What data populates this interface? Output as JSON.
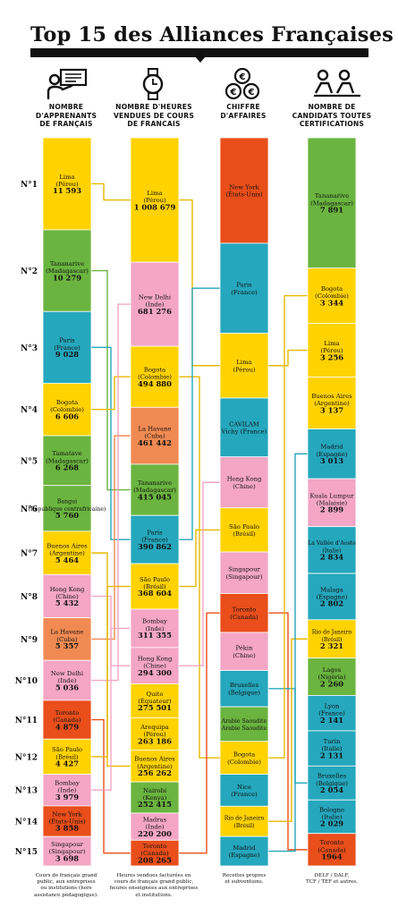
{
  "title": "Top 15 des Alliances Françaises",
  "columns": [
    {
      "key": "apprenants",
      "header_lines": [
        "NOMBRE",
        "D'APPRENANTS",
        "DE FRANÇAIS"
      ],
      "icon": "teacher-icon",
      "footnote_lines": [
        "Cours de français grand",
        "public, aux entreprises",
        "ou institutions (hors",
        "assistance pédagogique)."
      ]
    },
    {
      "key": "heures",
      "header_lines": [
        "NOMBRE D'HEURES",
        "VENDUES DE COURS",
        "DE FRANCAIS"
      ],
      "icon": "watch-icon",
      "footnote_lines": [
        "Heures vendues facturées en",
        "cours de français grand public,",
        "heures enseignées aux entreprises",
        "et institutions."
      ]
    },
    {
      "key": "ca",
      "header_lines": [
        "CHIFFRE",
        "D'AFFAIRES"
      ],
      "icon": "euro-coins-icon",
      "footnote_lines": [
        "Recettes propres",
        "et subventions."
      ]
    },
    {
      "key": "candidats",
      "header_lines": [
        "NOMBRE DE",
        "CANDIDATS TOUTES",
        "CERTIFICATIONS"
      ],
      "icon": "candidates-icon",
      "footnote_lines": [
        "DELF / DALF,",
        "TCF / TEF et autres."
      ]
    }
  ],
  "colors": {
    "yellow": "#FFD200",
    "green": "#6AB43F",
    "blue": "#25A7BD",
    "pink": "#F4A6C4",
    "orange": "#E94E1B",
    "peach": "#F08A52"
  },
  "chart_data": {
    "type": "table",
    "ranks": [
      "N°1",
      "N°2",
      "N°3",
      "N°4",
      "N°5",
      "N°6",
      "N°7",
      "N°8",
      "N°9",
      "N°10",
      "N°11",
      "N°12",
      "N°13",
      "N°14",
      "N°15"
    ],
    "apprenants": [
      {
        "city": "Lima",
        "country": "(Pérou)",
        "value": "11 593",
        "raw": 11593,
        "color": "yellow"
      },
      {
        "city": "Tananarive",
        "country": "(Madagascar)",
        "value": "10 279",
        "raw": 10279,
        "color": "green"
      },
      {
        "city": "Paris",
        "country": "(France)",
        "value": "9 028",
        "raw": 9028,
        "color": "blue"
      },
      {
        "city": "Bogota",
        "country": "(Colombie)",
        "value": "6 606",
        "raw": 6606,
        "color": "yellow"
      },
      {
        "city": "Tamatave",
        "country": "(Madagascar)",
        "value": "6 268",
        "raw": 6268,
        "color": "green"
      },
      {
        "city": "Bangui",
        "country": "(République centrafricaine)",
        "value": "5 760",
        "raw": 5760,
        "color": "green"
      },
      {
        "city": "Buenos Aires",
        "country": "(Argentine)",
        "value": "5 464",
        "raw": 5464,
        "color": "yellow"
      },
      {
        "city": "Hong Kong",
        "country": "(Chine)",
        "value": "5 432",
        "raw": 5432,
        "color": "pink"
      },
      {
        "city": "La Havane",
        "country": "(Cuba)",
        "value": "5 357",
        "raw": 5357,
        "color": "peach"
      },
      {
        "city": "New Delhi",
        "country": "(Inde)",
        "value": "5 036",
        "raw": 5036,
        "color": "pink"
      },
      {
        "city": "Toronto",
        "country": "(Canada)",
        "value": "4 879",
        "raw": 4879,
        "color": "orange"
      },
      {
        "city": "São Paulo",
        "country": "(Brésil)",
        "value": "4 427",
        "raw": 4427,
        "color": "yellow"
      },
      {
        "city": "Bombay",
        "country": "(Inde)",
        "value": "3 979",
        "raw": 3979,
        "color": "pink"
      },
      {
        "city": "New York",
        "country": "(États-Unis)",
        "value": "3 858",
        "raw": 3858,
        "color": "orange"
      },
      {
        "city": "Singapour",
        "country": "(Singapour)",
        "value": "3 698",
        "raw": 3698,
        "color": "pink"
      }
    ],
    "heures": [
      {
        "city": "Lima",
        "country": "(Pérou)",
        "value": "1 008 679",
        "raw": 1008679,
        "color": "yellow"
      },
      {
        "city": "New Delhi",
        "country": "(Inde)",
        "value": "681 276",
        "raw": 681276,
        "color": "pink"
      },
      {
        "city": "Bogota",
        "country": "(Colombie)",
        "value": "494 880",
        "raw": 494880,
        "color": "yellow"
      },
      {
        "city": "La Havane",
        "country": "(Cuba)",
        "value": "461 442",
        "raw": 461442,
        "color": "peach"
      },
      {
        "city": "Tananarive",
        "country": "(Madagascar)",
        "value": "415 045",
        "raw": 415045,
        "color": "green"
      },
      {
        "city": "Paris",
        "country": "(France)",
        "value": "390 862",
        "raw": 390862,
        "color": "blue"
      },
      {
        "city": "São Paulo",
        "country": "(Brésil)",
        "value": "368 604",
        "raw": 368604,
        "color": "yellow"
      },
      {
        "city": "Bombay",
        "country": "(Inde)",
        "value": "311 355",
        "raw": 311355,
        "color": "pink"
      },
      {
        "city": "Hong Kong",
        "country": "(Chine)",
        "value": "294 300",
        "raw": 294300,
        "color": "pink"
      },
      {
        "city": "Quito",
        "country": "(Équateur)",
        "value": "275 501",
        "raw": 275501,
        "color": "yellow"
      },
      {
        "city": "Arequipa",
        "country": "(Pérou)",
        "value": "263 186",
        "raw": 263186,
        "color": "yellow"
      },
      {
        "city": "Buenos Aires",
        "country": "(Argentine)",
        "value": "256 262",
        "raw": 256262,
        "color": "yellow"
      },
      {
        "city": "Nairobi",
        "country": "(Kenya)",
        "value": "252 415",
        "raw": 252415,
        "color": "green"
      },
      {
        "city": "Madras",
        "country": "(Inde)",
        "value": "220 200",
        "raw": 220200,
        "color": "pink"
      },
      {
        "city": "Toronto",
        "country": "(Canada)",
        "value": "208 265",
        "raw": 208265,
        "color": "orange"
      }
    ],
    "ca": [
      {
        "city": "New York",
        "country": "(États-Unis)",
        "value": "",
        "color": "orange"
      },
      {
        "city": "Paris",
        "country": "(France)",
        "value": "",
        "color": "blue"
      },
      {
        "city": "Lima",
        "country": "(Pérou)",
        "value": "",
        "color": "yellow"
      },
      {
        "city": "CAVILAM",
        "country": "Vichy (France)",
        "value": "",
        "color": "blue"
      },
      {
        "city": "Hong Kong",
        "country": "(Chine)",
        "value": "",
        "color": "pink"
      },
      {
        "city": "São Paulo",
        "country": "(Brésil)",
        "value": "",
        "color": "yellow"
      },
      {
        "city": "Singapour",
        "country": "(Singapour)",
        "value": "",
        "color": "pink"
      },
      {
        "city": "Toronto",
        "country": "(Canada)",
        "value": "",
        "color": "orange"
      },
      {
        "city": "Pékin",
        "country": "(Chine)",
        "value": "",
        "color": "pink"
      },
      {
        "city": "Bruxelles",
        "country": "(Belgique)",
        "value": "",
        "color": "blue"
      },
      {
        "city": "Arabie Saoudite",
        "country": "Arabie Saoudite",
        "value": "",
        "color": "green"
      },
      {
        "city": "Bogota",
        "country": "(Colombie)",
        "value": "",
        "color": "yellow"
      },
      {
        "city": "Nice",
        "country": "(France)",
        "value": "",
        "color": "blue"
      },
      {
        "city": "Rio de Janeiro",
        "country": "(Brésil)",
        "value": "",
        "color": "yellow"
      },
      {
        "city": "Madrid",
        "country": "(Espagne)",
        "value": "",
        "color": "blue"
      }
    ],
    "candidats": [
      {
        "city": "Tananarive",
        "country": "(Madagascar)",
        "value": "7 891",
        "raw": 7891,
        "color": "green"
      },
      {
        "city": "Bogota",
        "country": "(Colombie)",
        "value": "3 344",
        "raw": 3344,
        "color": "yellow"
      },
      {
        "city": "Lima",
        "country": "(Pérou)",
        "value": "3 256",
        "raw": 3256,
        "color": "yellow"
      },
      {
        "city": "Buenos Aires",
        "country": "(Argentine)",
        "value": "3 137",
        "raw": 3137,
        "color": "yellow"
      },
      {
        "city": "Madrid",
        "country": "(Espagne)",
        "value": "3 013",
        "raw": 3013,
        "color": "blue"
      },
      {
        "city": "Kuala Lumpur",
        "country": "(Malaisie)",
        "value": "2 899",
        "raw": 2899,
        "color": "pink"
      },
      {
        "city": "La Vallée d'Aoste",
        "country": "(Italie)",
        "value": "2 834",
        "raw": 2834,
        "color": "blue"
      },
      {
        "city": "Malaga",
        "country": "(Espagne)",
        "value": "2 802",
        "raw": 2802,
        "color": "blue"
      },
      {
        "city": "Rio de Janeiro",
        "country": "(Brésil)",
        "value": "2 321",
        "raw": 2321,
        "color": "yellow"
      },
      {
        "city": "Lagos",
        "country": "(Nigéria)",
        "value": "2 260",
        "raw": 2260,
        "color": "green"
      },
      {
        "city": "Lyon",
        "country": "(France)",
        "value": "2 141",
        "raw": 2141,
        "color": "blue"
      },
      {
        "city": "Turin",
        "country": "(Italie)",
        "value": "2 131",
        "raw": 2131,
        "color": "blue"
      },
      {
        "city": "Bruxelles",
        "country": "(Belgique)",
        "value": "2 054",
        "raw": 2054,
        "color": "blue"
      },
      {
        "city": "Bologne",
        "country": "(Italie)",
        "value": "2 029",
        "raw": 2029,
        "color": "blue"
      },
      {
        "city": "Toronto",
        "country": "(Canada)",
        "value": "1964",
        "raw": 1964,
        "color": "orange"
      }
    ],
    "ca_ratios": [
      0.122,
      0.104,
      0.075,
      0.068,
      0.059,
      0.051,
      0.048,
      0.045,
      0.044,
      0.042,
      0.04,
      0.038,
      0.037,
      0.035,
      0.034
    ]
  }
}
